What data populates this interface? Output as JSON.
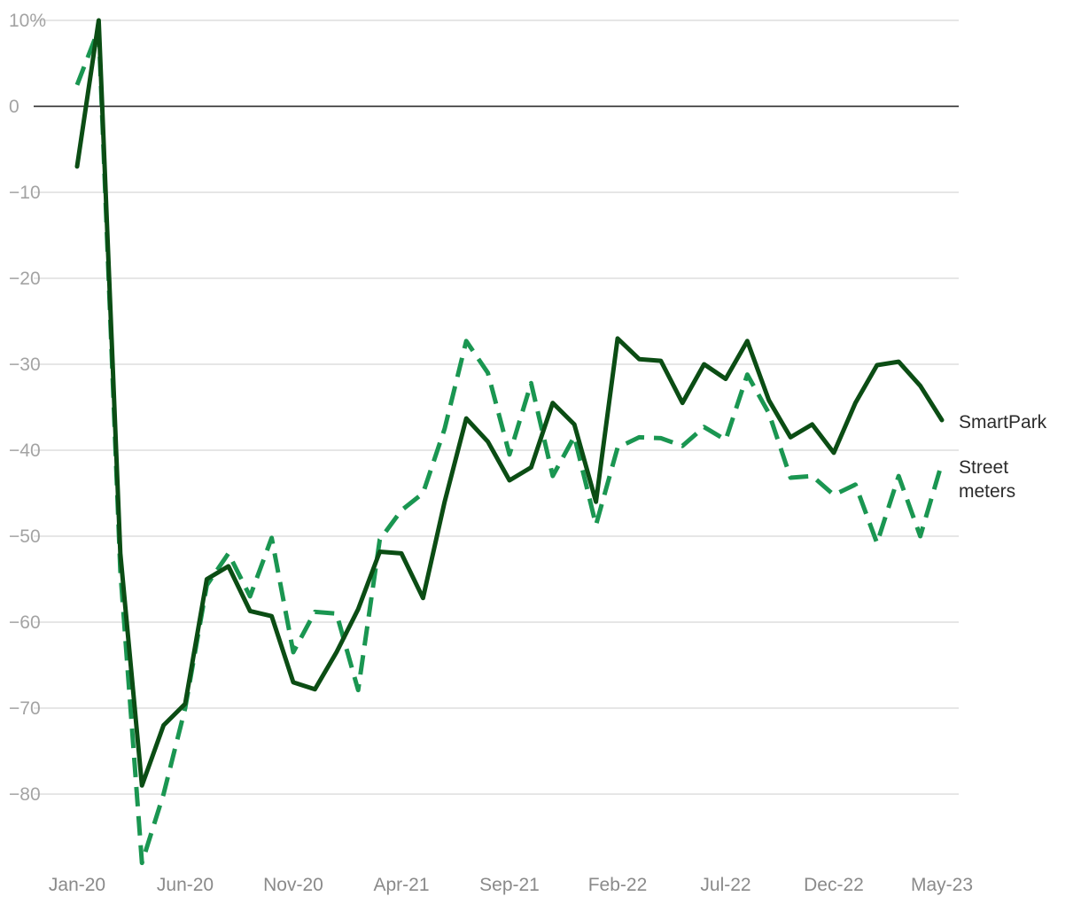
{
  "chart_data": {
    "type": "line",
    "title": "",
    "xlabel": "",
    "ylabel": "",
    "ylim": [
      -88,
      10
    ],
    "yticks": [
      {
        "value": 10,
        "label": "10%"
      },
      {
        "value": 0,
        "label": "0"
      },
      {
        "value": -10,
        "label": "−10"
      },
      {
        "value": -20,
        "label": "−20"
      },
      {
        "value": -30,
        "label": "−30"
      },
      {
        "value": -40,
        "label": "−40"
      },
      {
        "value": -50,
        "label": "−50"
      },
      {
        "value": -60,
        "label": "−60"
      },
      {
        "value": -70,
        "label": "−70"
      },
      {
        "value": -80,
        "label": "−80"
      }
    ],
    "xticks": [
      "Jan-20",
      "Jun-20",
      "Nov-20",
      "Apr-21",
      "Sep-21",
      "Feb-22",
      "Jul-22",
      "Dec-22",
      "May-23"
    ],
    "grid": true,
    "categories": [
      "Jan-20",
      "Feb-20",
      "Mar-20",
      "Apr-20",
      "May-20",
      "Jun-20",
      "Jul-20",
      "Aug-20",
      "Sep-20",
      "Oct-20",
      "Nov-20",
      "Dec-20",
      "Jan-21",
      "Feb-21",
      "Mar-21",
      "Apr-21",
      "May-21",
      "Jun-21",
      "Jul-21",
      "Aug-21",
      "Sep-21",
      "Oct-21",
      "Nov-21",
      "Dec-21",
      "Jan-22",
      "Feb-22",
      "Mar-22",
      "Apr-22",
      "May-22",
      "Jun-22",
      "Jul-22",
      "Aug-22",
      "Sep-22",
      "Oct-22",
      "Nov-22",
      "Dec-22",
      "Jan-23",
      "Feb-23",
      "Mar-23",
      "Apr-23",
      "May-23"
    ],
    "series": [
      {
        "name": "SmartPark",
        "color": "#0b4d14",
        "style": "solid",
        "values": [
          -7,
          10,
          -52,
          -79,
          -72,
          -69.5,
          -55,
          -53.5,
          -58.7,
          -59.3,
          -67,
          -67.8,
          -63.5,
          -58.5,
          -51.8,
          -52,
          -57.2,
          -46,
          -36.3,
          -39,
          -43.5,
          -42,
          -34.5,
          -37,
          -46,
          -27,
          -29.4,
          -29.6,
          -34.5,
          -30,
          -31.7,
          -27.3,
          -34.2,
          -38.5,
          -37,
          -40.3,
          -34.5,
          -30.1,
          -29.7,
          -32.5,
          -36.5
        ]
      },
      {
        "name": "Street meters",
        "color": "#1a9651",
        "style": "dashed",
        "values": [
          2.5,
          9,
          -54,
          -88,
          -80,
          -70,
          -55.7,
          -52,
          -57,
          -50.2,
          -63.5,
          -58.8,
          -59,
          -67.9,
          -50.4,
          -47,
          -45,
          -37.5,
          -27.3,
          -31,
          -40.5,
          -32.2,
          -43,
          -38.4,
          -48.7,
          -39.7,
          -38.5,
          -38.6,
          -39.5,
          -37.3,
          -38.8,
          -31.2,
          -35.7,
          -43.2,
          -43,
          -45.2,
          -44,
          -50.8,
          -43,
          -50,
          -41.5
        ]
      }
    ]
  }
}
